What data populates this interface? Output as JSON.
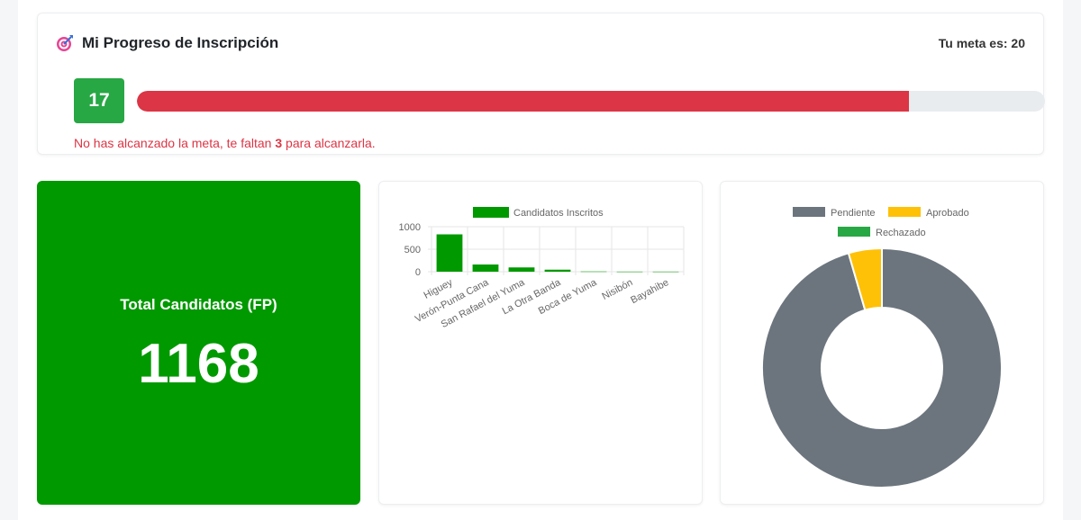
{
  "progress": {
    "title": "Mi Progreso de Inscripción",
    "goal_label": "Tu meta es: 20",
    "current": "17",
    "goal": 20,
    "fill_fraction": 0.85,
    "message_prefix": "No has alcanzado la meta, te faltan ",
    "remaining": "3",
    "message_suffix": " para alcanzarla.",
    "colors": {
      "badge": "#28a745",
      "fill": "#dc3545",
      "track": "#e9ecef"
    }
  },
  "total": {
    "label": "Total Candidatos (FP)",
    "value": "1168",
    "color": "#009900"
  },
  "chart_data": [
    {
      "type": "bar",
      "legend": [
        "Candidatos Inscritos"
      ],
      "categories": [
        "Higuey",
        "Verón-Punta Cana",
        "San Rafael del Yuma",
        "La Otra Banda",
        "Boca de Yuma",
        "Nisibón",
        "Bayahibe"
      ],
      "series": [
        {
          "name": "Candidatos Inscritos",
          "values": [
            830,
            160,
            95,
            45,
            5,
            2,
            2
          ],
          "color": "#009900"
        }
      ],
      "yticks": [
        "1000",
        "500",
        "0"
      ],
      "ylim": [
        0,
        1000
      ],
      "grid": true,
      "legend_position": "top"
    },
    {
      "type": "pie",
      "variant": "doughnut",
      "legend": [
        "Pendiente",
        "Aprobado",
        "Rechazado"
      ],
      "legend_position": "top",
      "series": [
        {
          "name": "Pendiente",
          "value": 95.5,
          "color": "#6c757d"
        },
        {
          "name": "Aprobado",
          "value": 4.5,
          "color": "#ffc107"
        },
        {
          "name": "Rechazado",
          "value": 0,
          "color": "#28a745"
        }
      ]
    }
  ]
}
